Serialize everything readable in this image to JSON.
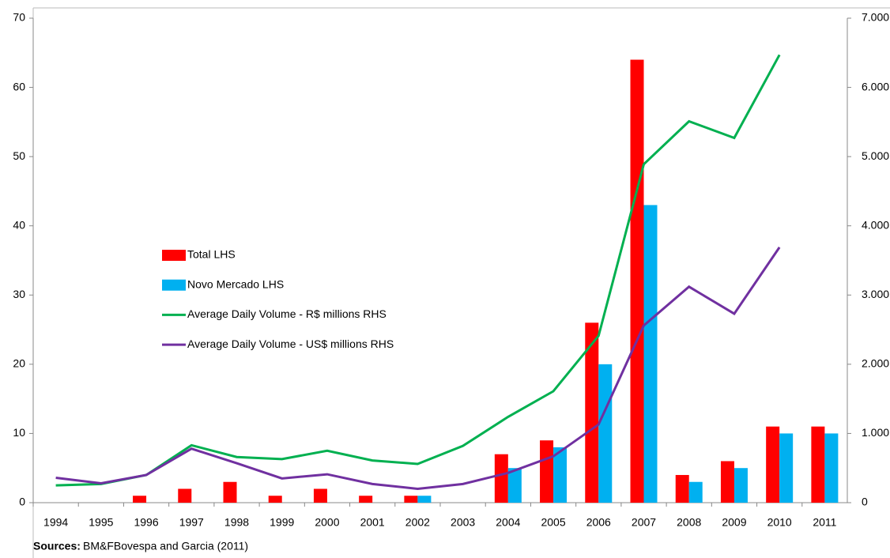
{
  "chart_data": {
    "type": "bar",
    "categories": [
      "1994",
      "1995",
      "1996",
      "1997",
      "1998",
      "1999",
      "2000",
      "2001",
      "2002",
      "2003",
      "2004",
      "2005",
      "2006",
      "2007",
      "2008",
      "2009",
      "2010",
      "2011"
    ],
    "series": [
      {
        "name": "Total LHS",
        "color": "#ff0000",
        "values": [
          0,
          0,
          1,
          2,
          3,
          1,
          2,
          1,
          1,
          0,
          7,
          9,
          26,
          64,
          4,
          6,
          11,
          11
        ]
      },
      {
        "name": "Novo Mercado LHS",
        "color": "#00b0f0",
        "values": [
          0,
          0,
          0,
          0,
          0,
          0,
          0,
          0,
          1,
          0,
          5,
          8,
          20,
          43,
          3,
          5,
          10,
          10
        ]
      },
      {
        "name": "Average Daily Volume - R$ millions RHS",
        "color": "#00b050",
        "type": "line",
        "axis": "y2",
        "values": [
          250,
          270,
          400,
          830,
          660,
          630,
          750,
          610,
          560,
          820,
          1240,
          1610,
          2410,
          4890,
          5510,
          5270,
          6470,
          null
        ]
      },
      {
        "name": "Average Daily Volume - US$ millions RHS",
        "color": "#7030a0",
        "type": "line",
        "axis": "y2",
        "values": [
          360,
          280,
          400,
          780,
          570,
          350,
          410,
          270,
          200,
          270,
          430,
          670,
          1130,
          2560,
          3120,
          2730,
          3690,
          null
        ]
      }
    ],
    "ylim": [
      0,
      70
    ],
    "yticks": [
      0,
      10,
      20,
      30,
      40,
      50,
      60,
      70
    ],
    "y2lim": [
      0,
      7000
    ],
    "y2ticks": [
      0,
      {
        "value": 1000,
        "label": "1.000"
      },
      {
        "value": 2000,
        "label": "2.000"
      },
      {
        "value": 3000,
        "label": "3.000"
      },
      {
        "value": 4000,
        "label": "4.000"
      },
      {
        "value": 5000,
        "label": "5.000"
      },
      {
        "value": 6000,
        "label": "6.000"
      },
      {
        "value": 7000,
        "label": "7.000"
      }
    ],
    "grid": false,
    "legend": "center-left",
    "source_label": "Sources:",
    "source": "BM&FBovespa and Garcia (2011)"
  }
}
